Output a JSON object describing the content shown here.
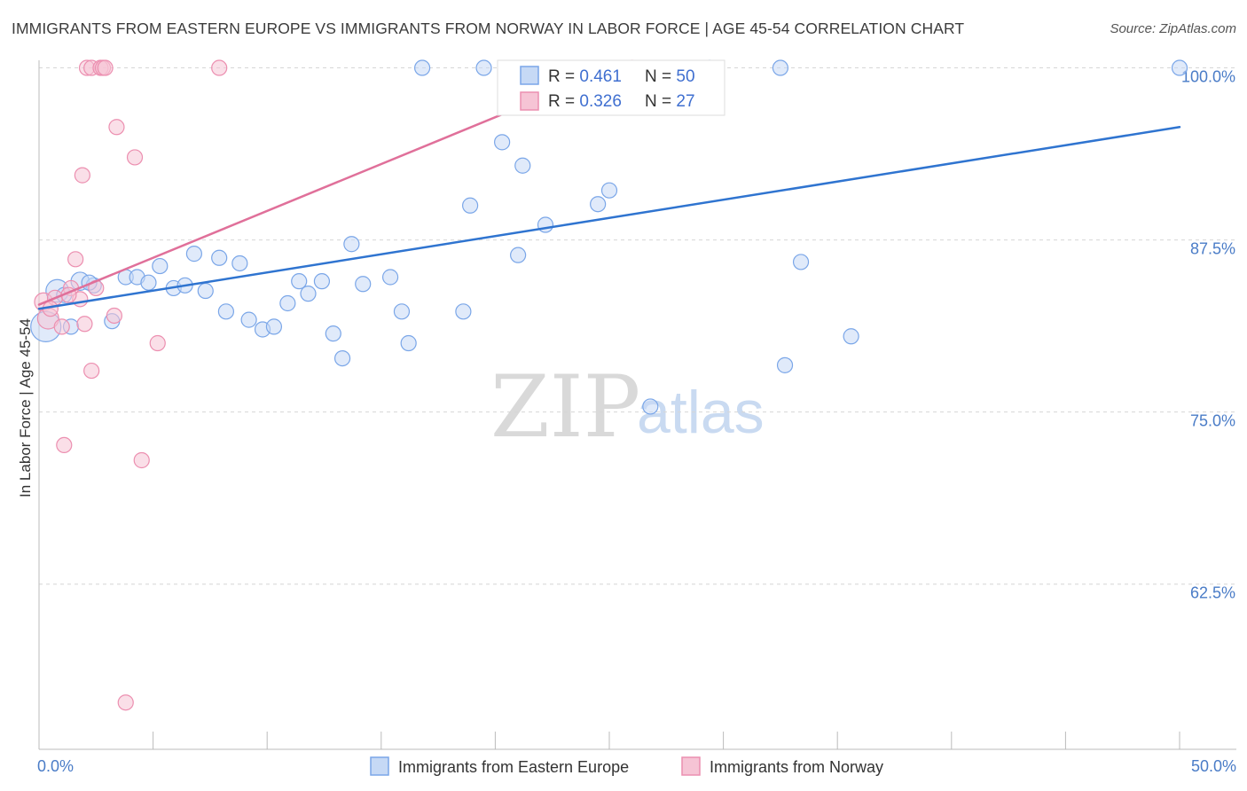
{
  "header": {
    "title": "IMMIGRANTS FROM EASTERN EUROPE VS IMMIGRANTS FROM NORWAY IN LABOR FORCE | AGE 45-54 CORRELATION CHART",
    "source": "Source: ZipAtlas.com"
  },
  "watermark": {
    "zip": "ZIP",
    "atlas": "atlas"
  },
  "chart_data": {
    "type": "scatter",
    "title": "IMMIGRANTS FROM EASTERN EUROPE VS IMMIGRANTS FROM NORWAY IN LABOR FORCE | AGE 45-54 CORRELATION CHART",
    "xlabel": "",
    "ylabel": "In Labor Force | Age 45-54",
    "xlim": [
      0,
      50
    ],
    "ylim": [
      50.5,
      101
    ],
    "x_tick_labels": [
      {
        "value": 0,
        "label": "0.0%"
      },
      {
        "value": 50,
        "label": "50.0%"
      }
    ],
    "y_tick_labels": [
      {
        "value": 100,
        "label": "100.0%"
      },
      {
        "value": 87.5,
        "label": "87.5%"
      },
      {
        "value": 75,
        "label": "75.0%"
      },
      {
        "value": 62.5,
        "label": "62.5%"
      }
    ],
    "grid": "horizontal-dashed",
    "legend_position": "top-center",
    "stats_legend": [
      {
        "r_label": "R = ",
        "r_value": "0.461",
        "n_label": "N = ",
        "n_value": "50",
        "color": "#7aa6e8"
      },
      {
        "r_label": "R = ",
        "r_value": "0.326",
        "n_label": "N = ",
        "n_value": "27",
        "color": "#ec8fb0"
      }
    ],
    "series": [
      {
        "name": "Immigrants from Eastern Europe",
        "color": "#7aa6e8",
        "fill": "#c6d9f5",
        "line_color": "#2f74d0",
        "trend": [
          [
            0,
            82.5
          ],
          [
            50,
            95.7
          ]
        ],
        "points": [
          [
            0.3,
            81.2,
            2
          ],
          [
            0.8,
            83.8,
            1.5
          ],
          [
            1.8,
            84.5,
            1.2
          ],
          [
            1.1,
            83.5,
            1
          ],
          [
            2.4,
            84.2,
            1
          ],
          [
            3.2,
            81.6,
            1
          ],
          [
            3.8,
            84.8,
            1
          ],
          [
            4.3,
            84.8,
            1
          ],
          [
            4.8,
            84.4,
            1
          ],
          [
            5.3,
            85.6,
            1
          ],
          [
            5.9,
            84.0,
            1
          ],
          [
            6.4,
            84.2,
            1
          ],
          [
            6.8,
            86.5,
            1
          ],
          [
            7.3,
            83.8,
            1
          ],
          [
            8.2,
            82.3,
            1
          ],
          [
            7.9,
            86.2,
            1
          ],
          [
            8.8,
            85.8,
            1
          ],
          [
            9.2,
            81.7,
            1
          ],
          [
            9.8,
            81.0,
            1
          ],
          [
            10.3,
            81.2,
            1
          ],
          [
            10.9,
            82.9,
            1
          ],
          [
            11.4,
            84.5,
            1
          ],
          [
            11.8,
            83.6,
            1
          ],
          [
            12.4,
            84.5,
            1
          ],
          [
            12.9,
            80.7,
            1
          ],
          [
            13.3,
            78.9,
            1
          ],
          [
            13.7,
            87.2,
            1
          ],
          [
            14.2,
            84.3,
            1
          ],
          [
            15.4,
            84.8,
            1
          ],
          [
            15.9,
            82.3,
            1
          ],
          [
            16.2,
            80.0,
            1
          ],
          [
            16.8,
            100,
            1
          ],
          [
            18.6,
            82.3,
            1
          ],
          [
            18.9,
            90.0,
            1
          ],
          [
            19.5,
            100,
            1
          ],
          [
            20.3,
            94.6,
            1
          ],
          [
            21.0,
            86.4,
            1
          ],
          [
            21.2,
            92.9,
            1
          ],
          [
            22.2,
            88.6,
            1
          ],
          [
            24.5,
            90.1,
            1
          ],
          [
            25.0,
            91.1,
            1
          ],
          [
            26.8,
            75.4,
            1
          ],
          [
            29.4,
            100,
            1
          ],
          [
            32.5,
            100,
            1
          ],
          [
            32.7,
            78.4,
            1
          ],
          [
            33.4,
            85.9,
            1
          ],
          [
            35.6,
            80.5,
            1
          ],
          [
            50.0,
            100,
            1
          ],
          [
            2.2,
            84.4,
            1
          ],
          [
            1.4,
            81.2,
            1
          ]
        ]
      },
      {
        "name": "Immigrants from Norway",
        "color": "#ec8fb0",
        "fill": "#f6c4d5",
        "line_color": "#e0709a",
        "trend": [
          [
            0,
            82.8
          ],
          [
            26,
            100.5
          ]
        ],
        "points": [
          [
            0.2,
            83.0,
            1.2
          ],
          [
            0.4,
            81.8,
            1.4
          ],
          [
            0.7,
            83.3,
            1
          ],
          [
            1.0,
            81.2,
            1
          ],
          [
            1.1,
            72.6,
            1
          ],
          [
            1.4,
            84.0,
            1
          ],
          [
            1.6,
            86.1,
            1
          ],
          [
            1.8,
            83.2,
            1
          ],
          [
            1.9,
            92.2,
            1
          ],
          [
            2.0,
            81.4,
            1
          ],
          [
            2.1,
            100,
            1
          ],
          [
            2.3,
            100,
            1
          ],
          [
            2.3,
            78.0,
            1
          ],
          [
            2.5,
            84.0,
            1
          ],
          [
            2.7,
            100,
            1
          ],
          [
            2.8,
            100,
            1
          ],
          [
            2.9,
            100,
            1
          ],
          [
            3.3,
            82.0,
            1
          ],
          [
            3.4,
            95.7,
            1
          ],
          [
            3.8,
            53.9,
            1
          ],
          [
            4.2,
            93.5,
            1
          ],
          [
            4.5,
            71.5,
            1
          ],
          [
            5.2,
            80.0,
            1
          ],
          [
            7.9,
            100,
            1
          ],
          [
            26.0,
            100,
            1
          ],
          [
            1.3,
            83.5,
            1
          ],
          [
            0.5,
            82.5,
            1
          ]
        ]
      }
    ]
  }
}
